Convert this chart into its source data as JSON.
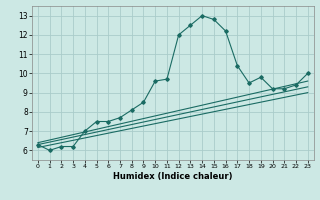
{
  "title": "",
  "xlabel": "Humidex (Indice chaleur)",
  "bg_color": "#cce8e4",
  "grid_color": "#aaccca",
  "line_color": "#1a6b63",
  "xlim": [
    -0.5,
    23.5
  ],
  "ylim": [
    5.5,
    13.5
  ],
  "xticks": [
    0,
    1,
    2,
    3,
    4,
    5,
    6,
    7,
    8,
    9,
    10,
    11,
    12,
    13,
    14,
    15,
    16,
    17,
    18,
    19,
    20,
    21,
    22,
    23
  ],
  "yticks": [
    6,
    7,
    8,
    9,
    10,
    11,
    12,
    13
  ],
  "main_x": [
    0,
    1,
    2,
    3,
    4,
    5,
    6,
    7,
    8,
    9,
    10,
    11,
    12,
    13,
    14,
    15,
    16,
    17,
    18,
    19,
    20,
    21,
    22,
    23
  ],
  "main_y": [
    6.3,
    6.0,
    6.2,
    6.2,
    7.0,
    7.5,
    7.5,
    7.7,
    8.1,
    8.5,
    9.6,
    9.7,
    12.0,
    12.5,
    13.0,
    12.8,
    12.2,
    10.4,
    9.5,
    9.8,
    9.2,
    9.2,
    9.4,
    10.0
  ],
  "line1_x": [
    0,
    23
  ],
  "line1_y": [
    6.4,
    9.6
  ],
  "line2_x": [
    0,
    23
  ],
  "line2_y": [
    6.3,
    9.3
  ],
  "line3_x": [
    0,
    23
  ],
  "line3_y": [
    6.15,
    9.0
  ]
}
